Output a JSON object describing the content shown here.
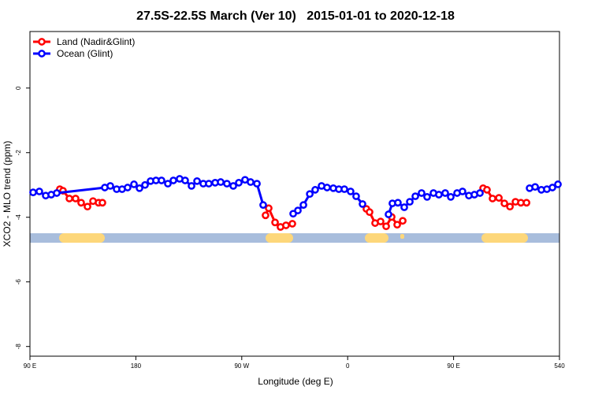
{
  "chart_data": {
    "type": "line",
    "title": "27.5S-22.5S March (Ver 10)   2015-01-01 to 2020-12-18",
    "x_label": "Longitude (deg E)",
    "y_label": "XCO2 - MLO trend (ppm)",
    "xlim": [
      90,
      540
    ],
    "ylim": [
      -8.3,
      1.75
    ],
    "xticks": [
      {
        "value": 90,
        "label": "90 E"
      },
      180,
      {
        "value": 270,
        "label": "90 W"
      },
      {
        "value": 360,
        "label": "0"
      },
      {
        "value": 450,
        "label": "90 E"
      },
      540
    ],
    "yticks": [
      0,
      -2,
      -4,
      -6,
      -8
    ],
    "legend": "top-left",
    "series": [
      {
        "name": "Land (Nadir&Glint)",
        "color": "#ff0000",
        "x": [
          115.4,
          118.1,
          123.5,
          128.8,
          133.5,
          138.9,
          143.6,
          148.3,
          151.6,
          null,
          290.2,
          292.9,
          298.3,
          302.9,
          307.6,
          313.0,
          null,
          375.9,
          378.6,
          383.3,
          388.0,
          392.7,
          397.4,
          402.1,
          406.8,
          null,
          475.1,
          478.4,
          483.1,
          488.5,
          493.2,
          497.9,
          502.6,
          507.2,
          512.0
        ],
        "values": [
          -3.13,
          -3.18,
          -3.42,
          -3.42,
          -3.55,
          -3.67,
          -3.5,
          -3.55,
          -3.55,
          null,
          -3.94,
          -3.72,
          -4.16,
          -4.3,
          -4.25,
          -4.2,
          null,
          -3.74,
          -3.84,
          -4.18,
          -4.13,
          -4.28,
          -3.99,
          -4.23,
          -4.11,
          null,
          -3.1,
          -3.15,
          -3.42,
          -3.4,
          -3.57,
          -3.67,
          -3.52,
          -3.55,
          -3.55
        ]
      },
      {
        "name": "Ocean (Glint)",
        "color": "#0000ff",
        "x": [
          92.7,
          98.0,
          103.4,
          108.1,
          112.8,
          153.6,
          158.3,
          163.7,
          168.3,
          173.0,
          178.4,
          183.1,
          187.8,
          192.5,
          197.1,
          201.8,
          207.2,
          211.9,
          217.2,
          221.9,
          227.3,
          232.0,
          237.3,
          242.0,
          247.4,
          252.1,
          257.4,
          262.8,
          267.5,
          272.8,
          277.5,
          282.9,
          288.2,
          null,
          313.7,
          317.7,
          322.4,
          327.8,
          332.4,
          337.8,
          342.5,
          347.8,
          352.5,
          357.2,
          362.5,
          367.2,
          372.6,
          null,
          394.7,
          398.0,
          402.7,
          408.1,
          412.8,
          417.5,
          422.8,
          427.5,
          432.9,
          437.5,
          442.9,
          447.6,
          453.0,
          457.6,
          463.0,
          467.7,
          472.4,
          null,
          514.6,
          519.3,
          524.6,
          529.3,
          534.0,
          538.7
        ],
        "values": [
          -3.23,
          -3.2,
          -3.33,
          -3.3,
          -3.25,
          -3.08,
          -3.03,
          -3.13,
          -3.13,
          -3.08,
          -2.98,
          -3.1,
          -3.0,
          -2.88,
          -2.86,
          -2.86,
          -2.96,
          -2.86,
          -2.81,
          -2.86,
          -3.03,
          -2.88,
          -2.96,
          -2.96,
          -2.93,
          -2.91,
          -2.96,
          -3.03,
          -2.93,
          -2.84,
          -2.91,
          -2.96,
          -3.62,
          null,
          -3.89,
          -3.79,
          -3.62,
          -3.28,
          -3.15,
          -3.03,
          -3.08,
          -3.1,
          -3.13,
          -3.13,
          -3.2,
          -3.35,
          -3.59,
          null,
          -3.91,
          -3.57,
          -3.55,
          -3.69,
          -3.52,
          -3.35,
          -3.25,
          -3.37,
          -3.25,
          -3.3,
          -3.25,
          -3.37,
          -3.25,
          -3.2,
          -3.33,
          -3.3,
          -3.25,
          null,
          -3.1,
          -3.06,
          -3.15,
          -3.13,
          -3.08,
          -2.98
        ]
      }
    ]
  }
}
